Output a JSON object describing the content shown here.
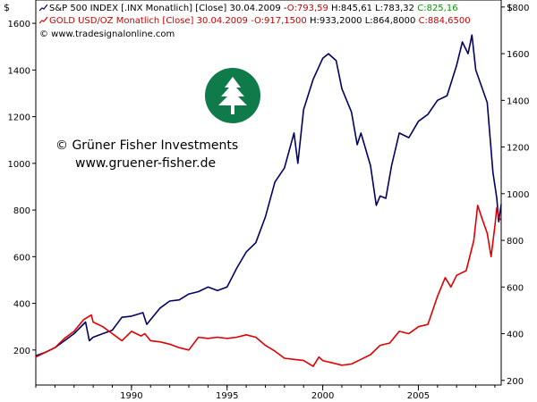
{
  "header": {
    "sp500_line": {
      "label": "S&P 500 INDEX [.INX Monatlich] [Close] 30.04.2009 -",
      "open": "O:793,59",
      "hl": "H:845,61 L:783,32",
      "close": "C:825,16"
    },
    "gold_line": {
      "label": "GOLD USD/OZ Monatlich [Close]  30.04.2009 -",
      "open": "O:917,1500",
      "hl": "H:933,2000 L:864,8000",
      "close": "C:884,6500"
    },
    "copyright": "© www.tradesignalonline.com"
  },
  "watermark": {
    "line1": "© Grüner Fisher Investments",
    "line2": "www.gruener-fisher.de",
    "logo": "tree-logo-icon"
  },
  "colors": {
    "sp500": "#000066",
    "gold": "#e00000",
    "logo": "#0f7a4a",
    "open_value": "#cc0000",
    "close_value": "#009900"
  },
  "chart_data": {
    "type": "line",
    "left_axis": {
      "label": "$",
      "ticks": [
        200,
        400,
        600,
        800,
        1000,
        1200,
        1400,
        1600
      ],
      "range": [
        50,
        1700
      ]
    },
    "right_axis": {
      "label": "$",
      "ticks": [
        200,
        400,
        600,
        800,
        1000,
        1200,
        1400,
        1600,
        1800
      ],
      "range": [
        180,
        1830
      ]
    },
    "x_axis": {
      "ticks": [
        "1990",
        "1995",
        "2000",
        "2005"
      ],
      "range": [
        1985.0,
        2009.33
      ]
    },
    "series": [
      {
        "name": "S&P 500 INDEX",
        "axis": "left",
        "points": [
          [
            1985.0,
            175
          ],
          [
            1985.5,
            190
          ],
          [
            1986.0,
            210
          ],
          [
            1986.5,
            240
          ],
          [
            1987.0,
            270
          ],
          [
            1987.6,
            320
          ],
          [
            1987.8,
            240
          ],
          [
            1988.0,
            255
          ],
          [
            1988.5,
            270
          ],
          [
            1989.0,
            285
          ],
          [
            1989.5,
            340
          ],
          [
            1990.0,
            345
          ],
          [
            1990.6,
            360
          ],
          [
            1990.8,
            310
          ],
          [
            1991.0,
            330
          ],
          [
            1991.5,
            380
          ],
          [
            1992.0,
            410
          ],
          [
            1992.5,
            415
          ],
          [
            1993.0,
            440
          ],
          [
            1993.5,
            450
          ],
          [
            1994.0,
            470
          ],
          [
            1994.5,
            455
          ],
          [
            1995.0,
            470
          ],
          [
            1995.5,
            550
          ],
          [
            1996.0,
            620
          ],
          [
            1996.5,
            660
          ],
          [
            1997.0,
            770
          ],
          [
            1997.5,
            920
          ],
          [
            1998.0,
            980
          ],
          [
            1998.5,
            1130
          ],
          [
            1998.7,
            1000
          ],
          [
            1999.0,
            1230
          ],
          [
            1999.5,
            1360
          ],
          [
            2000.0,
            1450
          ],
          [
            2000.3,
            1470
          ],
          [
            2000.7,
            1440
          ],
          [
            2001.0,
            1320
          ],
          [
            2001.5,
            1220
          ],
          [
            2001.8,
            1080
          ],
          [
            2002.0,
            1130
          ],
          [
            2002.5,
            990
          ],
          [
            2002.8,
            820
          ],
          [
            2003.0,
            860
          ],
          [
            2003.3,
            850
          ],
          [
            2003.6,
            990
          ],
          [
            2004.0,
            1130
          ],
          [
            2004.5,
            1110
          ],
          [
            2005.0,
            1180
          ],
          [
            2005.5,
            1210
          ],
          [
            2006.0,
            1270
          ],
          [
            2006.5,
            1290
          ],
          [
            2007.0,
            1420
          ],
          [
            2007.3,
            1520
          ],
          [
            2007.6,
            1470
          ],
          [
            2007.8,
            1550
          ],
          [
            2008.0,
            1400
          ],
          [
            2008.3,
            1330
          ],
          [
            2008.6,
            1260
          ],
          [
            2008.9,
            960
          ],
          [
            2009.1,
            850
          ],
          [
            2009.2,
            750
          ],
          [
            2009.33,
            825
          ]
        ]
      },
      {
        "name": "GOLD USD/OZ",
        "axis": "right",
        "points": [
          [
            1985.0,
            300
          ],
          [
            1985.5,
            320
          ],
          [
            1986.0,
            340
          ],
          [
            1986.5,
            380
          ],
          [
            1987.0,
            410
          ],
          [
            1987.5,
            460
          ],
          [
            1987.9,
            480
          ],
          [
            1988.0,
            450
          ],
          [
            1988.5,
            430
          ],
          [
            1989.0,
            400
          ],
          [
            1989.5,
            370
          ],
          [
            1990.0,
            410
          ],
          [
            1990.5,
            390
          ],
          [
            1990.7,
            400
          ],
          [
            1991.0,
            370
          ],
          [
            1991.5,
            365
          ],
          [
            1992.0,
            355
          ],
          [
            1992.5,
            340
          ],
          [
            1993.0,
            330
          ],
          [
            1993.5,
            385
          ],
          [
            1994.0,
            380
          ],
          [
            1994.5,
            385
          ],
          [
            1995.0,
            380
          ],
          [
            1995.5,
            385
          ],
          [
            1996.0,
            395
          ],
          [
            1996.5,
            385
          ],
          [
            1997.0,
            350
          ],
          [
            1997.5,
            325
          ],
          [
            1998.0,
            295
          ],
          [
            1998.5,
            290
          ],
          [
            1999.0,
            285
          ],
          [
            1999.5,
            260
          ],
          [
            1999.8,
            300
          ],
          [
            2000.0,
            285
          ],
          [
            2000.5,
            275
          ],
          [
            2001.0,
            265
          ],
          [
            2001.5,
            270
          ],
          [
            2002.0,
            290
          ],
          [
            2002.5,
            310
          ],
          [
            2003.0,
            350
          ],
          [
            2003.5,
            360
          ],
          [
            2004.0,
            410
          ],
          [
            2004.5,
            400
          ],
          [
            2005.0,
            430
          ],
          [
            2005.5,
            440
          ],
          [
            2006.0,
            560
          ],
          [
            2006.4,
            640
          ],
          [
            2006.7,
            600
          ],
          [
            2007.0,
            650
          ],
          [
            2007.5,
            670
          ],
          [
            2007.9,
            800
          ],
          [
            2008.1,
            950
          ],
          [
            2008.3,
            900
          ],
          [
            2008.6,
            830
          ],
          [
            2008.8,
            730
          ],
          [
            2009.0,
            860
          ],
          [
            2009.1,
            940
          ],
          [
            2009.2,
            900
          ],
          [
            2009.33,
            885
          ]
        ]
      }
    ]
  }
}
